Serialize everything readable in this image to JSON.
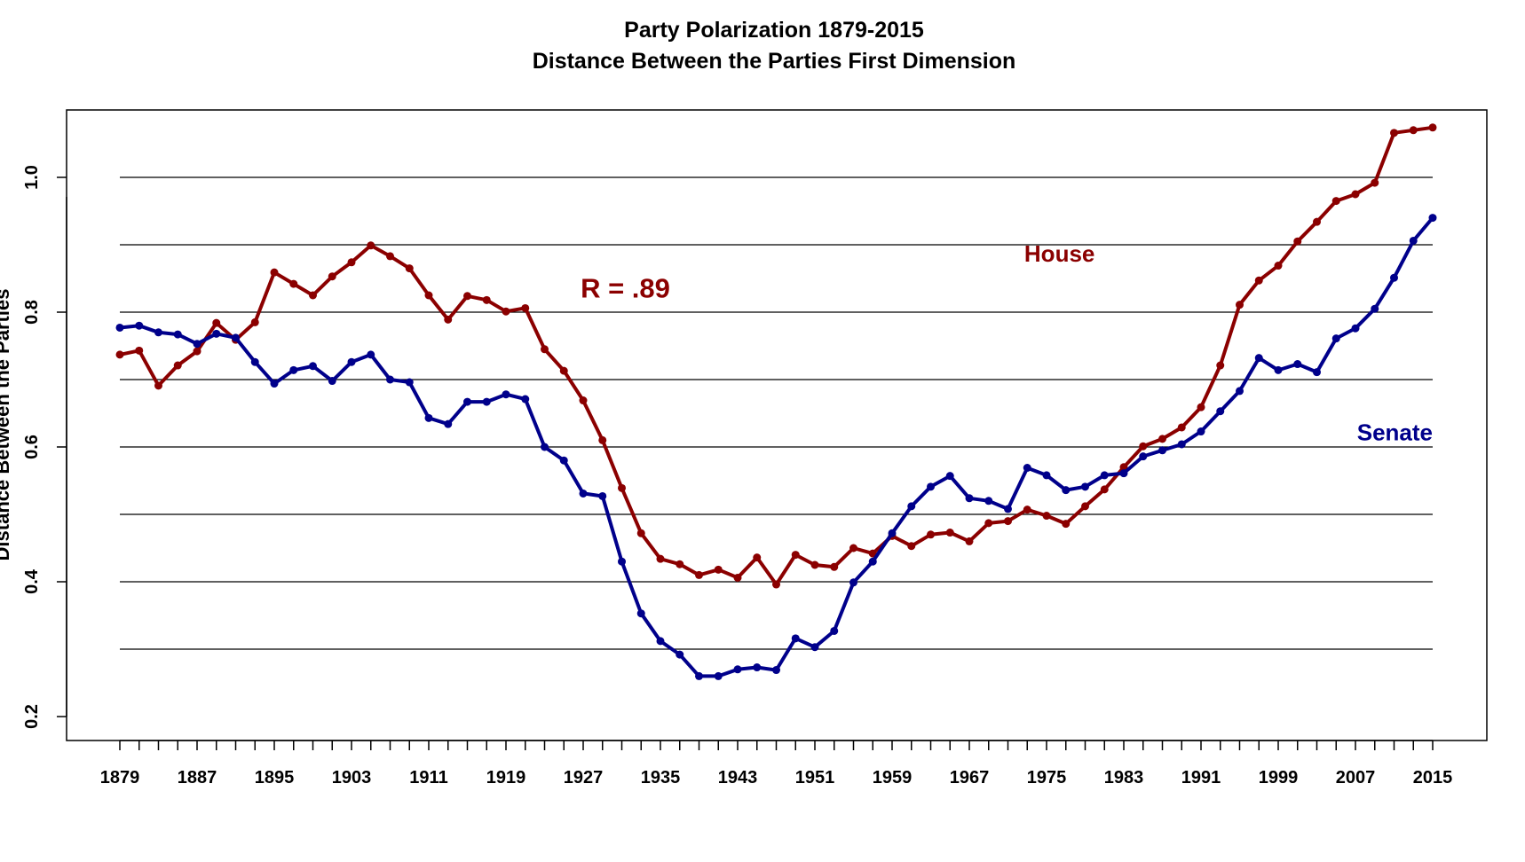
{
  "chart_data": {
    "type": "line",
    "title": "Party Polarization 1879-2015",
    "subtitle": "Distance Between the Parties First Dimension",
    "xlabel": "",
    "ylabel": "Distance Between the Parties",
    "xlim": [
      1879,
      2015
    ],
    "ylim": [
      0.2,
      1.1
    ],
    "x_ticks": [
      "1879",
      "1887",
      "1895",
      "1903",
      "1911",
      "1919",
      "1927",
      "1935",
      "1943",
      "1951",
      "1959",
      "1967",
      "1975",
      "1983",
      "1991",
      "1999",
      "2007",
      "2015"
    ],
    "y_ticks": [
      "0.2",
      "0.4",
      "0.6",
      "0.8",
      "1.0"
    ],
    "gridlines_y": [
      0.3,
      0.4,
      0.5,
      0.6,
      0.7,
      0.8,
      0.9,
      1.0
    ],
    "grid": "horizontal",
    "x": [
      1879,
      1881,
      1883,
      1885,
      1887,
      1889,
      1891,
      1893,
      1895,
      1897,
      1899,
      1901,
      1903,
      1905,
      1907,
      1909,
      1911,
      1913,
      1915,
      1917,
      1919,
      1921,
      1923,
      1925,
      1927,
      1929,
      1931,
      1933,
      1935,
      1937,
      1939,
      1941,
      1943,
      1945,
      1947,
      1949,
      1951,
      1953,
      1955,
      1957,
      1959,
      1961,
      1963,
      1965,
      1967,
      1969,
      1971,
      1973,
      1975,
      1977,
      1979,
      1981,
      1983,
      1985,
      1987,
      1989,
      1991,
      1993,
      1995,
      1997,
      1999,
      2001,
      2003,
      2005,
      2007,
      2009,
      2011,
      2013,
      2015
    ],
    "series": [
      {
        "name": "House",
        "color": "#8b0000",
        "values": [
          0.737,
          0.743,
          0.691,
          0.721,
          0.742,
          0.784,
          0.759,
          0.785,
          0.859,
          0.842,
          0.825,
          0.853,
          0.874,
          0.899,
          0.883,
          0.865,
          0.825,
          0.789,
          0.824,
          0.818,
          0.801,
          0.806,
          0.745,
          0.713,
          0.669,
          0.61,
          0.539,
          0.472,
          0.434,
          0.426,
          0.41,
          0.418,
          0.406,
          0.436,
          0.396,
          0.44,
          0.425,
          0.422,
          0.45,
          0.442,
          0.468,
          0.453,
          0.47,
          0.473,
          0.46,
          0.487,
          0.49,
          0.507,
          0.498,
          0.486,
          0.512,
          0.537,
          0.57,
          0.601,
          0.612,
          0.629,
          0.659,
          0.721,
          0.811,
          0.847,
          0.869,
          0.905,
          0.934,
          0.965,
          0.975,
          0.992,
          1.066,
          1.07,
          1.074
        ]
      },
      {
        "name": "Senate",
        "color": "#00008b",
        "values": [
          0.777,
          0.78,
          0.77,
          0.767,
          0.753,
          0.768,
          0.762,
          0.726,
          0.694,
          0.714,
          0.72,
          0.698,
          0.726,
          0.737,
          0.7,
          0.696,
          0.643,
          0.634,
          0.667,
          0.667,
          0.678,
          0.671,
          0.6,
          0.58,
          0.531,
          0.527,
          0.43,
          0.353,
          0.312,
          0.292,
          0.26,
          0.26,
          0.27,
          0.273,
          0.269,
          0.316,
          0.303,
          0.327,
          0.399,
          0.43,
          0.472,
          0.512,
          0.541,
          0.557,
          0.524,
          0.52,
          0.508,
          0.569,
          0.558,
          0.536,
          0.541,
          0.558,
          0.561,
          0.586,
          0.595,
          0.604,
          0.623,
          0.653,
          0.683,
          0.732,
          0.714,
          0.723,
          0.711,
          0.761,
          0.776,
          0.805,
          0.851,
          0.906,
          0.94
        ]
      }
    ],
    "annotations": [
      {
        "text": "R = .89",
        "x": 1936,
        "y": 0.822,
        "color": "#8b0000"
      },
      {
        "text": "House",
        "x": 1980,
        "y": 0.875,
        "color": "#8b0000"
      },
      {
        "text": "Senate",
        "x": 2015,
        "y": 0.61,
        "color": "#00008b"
      }
    ]
  }
}
